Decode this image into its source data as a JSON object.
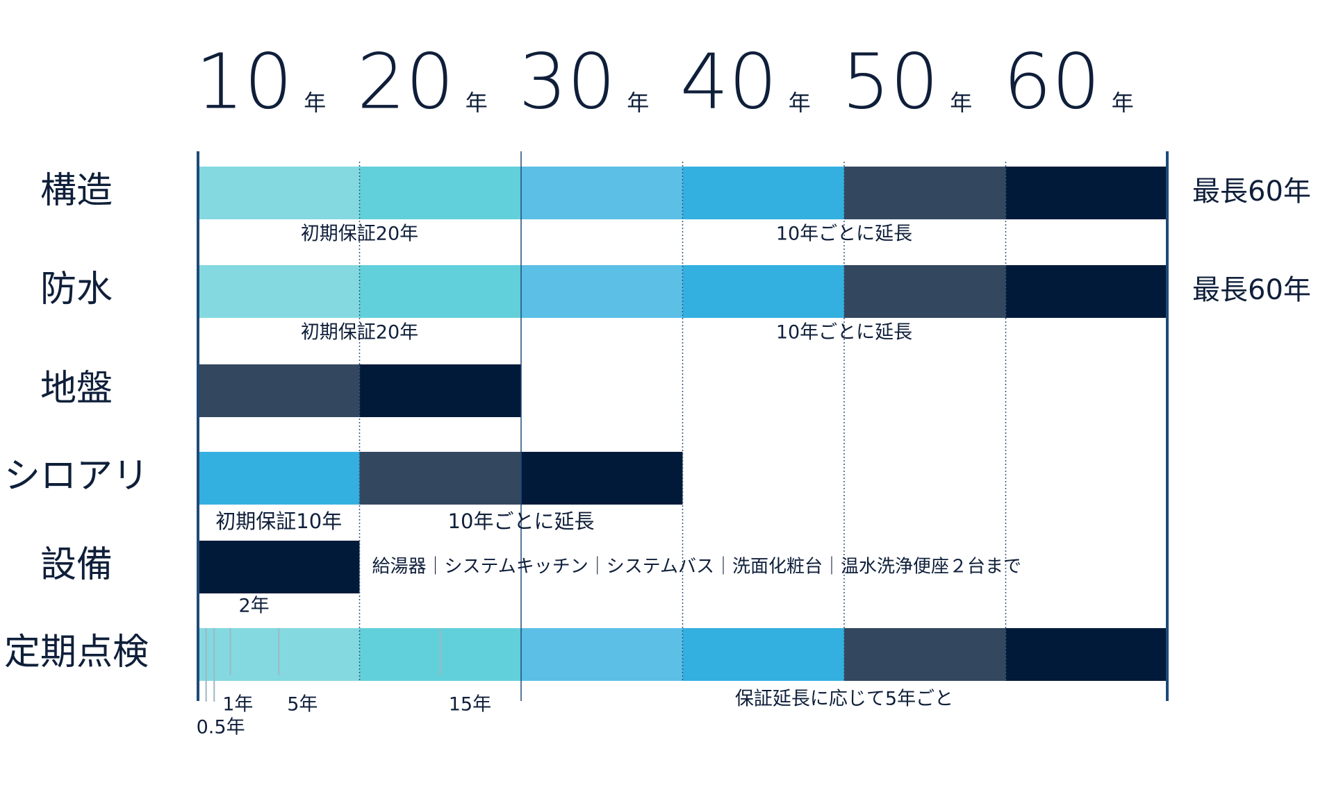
{
  "chart_data": {
    "type": "gantt",
    "xlim": [
      0,
      60
    ],
    "xticks": [
      10,
      20,
      30,
      40,
      50,
      60
    ],
    "x_unit": "年",
    "solid_lines": [
      0,
      20,
      60
    ],
    "dotted_lines": [
      10,
      30,
      40,
      50
    ],
    "rows": [
      {
        "label": "構造",
        "max_label": "最長60年",
        "segments": [
          {
            "start": 0,
            "end": 10,
            "color": "#84d9e0"
          },
          {
            "start": 10,
            "end": 20,
            "color": "#62d0da"
          },
          {
            "start": 20,
            "end": 30,
            "color": "#5bbfe6"
          },
          {
            "start": 30,
            "end": 40,
            "color": "#34b0e0"
          },
          {
            "start": 40,
            "end": 50,
            "color": "#33475f"
          },
          {
            "start": 50,
            "end": 60,
            "color": "#021a3a"
          }
        ],
        "notes": [
          {
            "text": "初期保証20年",
            "span": [
              0,
              20
            ]
          },
          {
            "text": "10年ごとに延長",
            "span": [
              20,
              60
            ]
          }
        ]
      },
      {
        "label": "防水",
        "max_label": "最長60年",
        "segments": [
          {
            "start": 0,
            "end": 10,
            "color": "#84d9e0"
          },
          {
            "start": 10,
            "end": 20,
            "color": "#62d0da"
          },
          {
            "start": 20,
            "end": 30,
            "color": "#5bbfe6"
          },
          {
            "start": 30,
            "end": 40,
            "color": "#34b0e0"
          },
          {
            "start": 40,
            "end": 50,
            "color": "#33475f"
          },
          {
            "start": 50,
            "end": 60,
            "color": "#021a3a"
          }
        ],
        "notes": [
          {
            "text": "初期保証20年",
            "span": [
              0,
              20
            ]
          },
          {
            "text": "10年ごとに延長",
            "span": [
              20,
              60
            ]
          }
        ]
      },
      {
        "label": "地盤",
        "segments": [
          {
            "start": 0,
            "end": 10,
            "color": "#33475f"
          },
          {
            "start": 10,
            "end": 20,
            "color": "#021a3a"
          }
        ],
        "notes": []
      },
      {
        "label": "シロアリ",
        "segments": [
          {
            "start": 0,
            "end": 10,
            "color": "#34b0e0"
          },
          {
            "start": 10,
            "end": 20,
            "color": "#33475f"
          },
          {
            "start": 20,
            "end": 30,
            "color": "#021a3a"
          }
        ],
        "notes": [
          {
            "text": "初期保証10年",
            "span": [
              0,
              10
            ]
          },
          {
            "text": "10年ごとに延長",
            "span": [
              10,
              30
            ]
          }
        ]
      },
      {
        "label": "設備",
        "segments": [
          {
            "start": 0,
            "end": 10,
            "color": "#021a3a"
          }
        ],
        "notes": [
          {
            "text": "給湯器｜システムキッチン｜システムバス｜洗面化粧台｜温水洗浄便座２台まで",
            "span": [
              10,
              60
            ]
          }
        ]
      },
      {
        "label": "定期点検",
        "segments": [
          {
            "start": 0,
            "end": 10,
            "color": "#84d9e0"
          },
          {
            "start": 10,
            "end": 20,
            "color": "#62d0da"
          },
          {
            "start": 20,
            "end": 30,
            "color": "#5bbfe6"
          },
          {
            "start": 30,
            "end": 40,
            "color": "#34b0e0"
          },
          {
            "start": 40,
            "end": 50,
            "color": "#33475f"
          },
          {
            "start": 50,
            "end": 60,
            "color": "#021a3a"
          }
        ],
        "notes": [
          {
            "text": "保証延長に応じて5年ごと",
            "span": [
              20,
              60
            ]
          }
        ],
        "marks": [
          {
            "value": 0.5,
            "label": "0.5年"
          },
          {
            "value": 1,
            "label": "1年"
          },
          {
            "value": 2,
            "label": "2年"
          },
          {
            "value": 5,
            "label": "5年"
          },
          {
            "value": 15,
            "label": "15年"
          }
        ]
      }
    ]
  }
}
